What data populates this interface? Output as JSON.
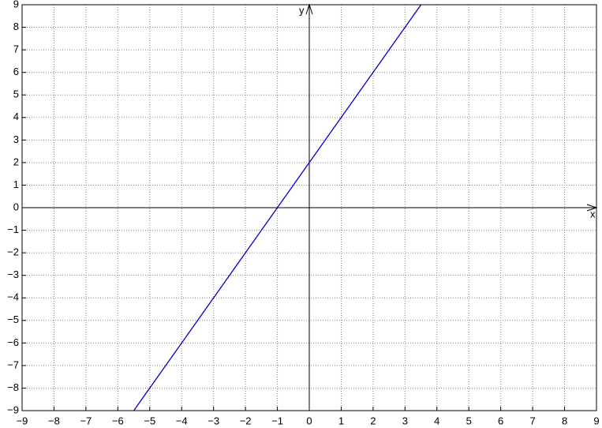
{
  "chart_data": {
    "type": "line",
    "x": [
      -5.5,
      3.5
    ],
    "values": [
      -9,
      9
    ],
    "color": "#0000cc",
    "xlabel": "x",
    "ylabel": "y",
    "xlim": [
      -9,
      9
    ],
    "ylim": [
      -9,
      9
    ],
    "grid": true,
    "xticks": [
      {
        "value": -9,
        "label": "−9"
      },
      {
        "value": -8,
        "label": "−8"
      },
      {
        "value": -7,
        "label": "−7"
      },
      {
        "value": -6,
        "label": "−6"
      },
      {
        "value": -5,
        "label": "−5"
      },
      {
        "value": -4,
        "label": "−4"
      },
      {
        "value": -3,
        "label": "−3"
      },
      {
        "value": -2,
        "label": "−2"
      },
      {
        "value": -1,
        "label": "−1"
      },
      0,
      1,
      2,
      3,
      4,
      5,
      6,
      7,
      8,
      9
    ],
    "yticks": [
      {
        "value": -9,
        "label": "−9"
      },
      {
        "value": -8,
        "label": "−8"
      },
      {
        "value": -7,
        "label": "−7"
      },
      {
        "value": -6,
        "label": "−6"
      },
      {
        "value": -5,
        "label": "−5"
      },
      {
        "value": -4,
        "label": "−4"
      },
      {
        "value": -3,
        "label": "−3"
      },
      {
        "value": -2,
        "label": "−2"
      },
      {
        "value": -1,
        "label": "−1"
      },
      0,
      1,
      2,
      3,
      4,
      5,
      6,
      7,
      8,
      9
    ]
  }
}
